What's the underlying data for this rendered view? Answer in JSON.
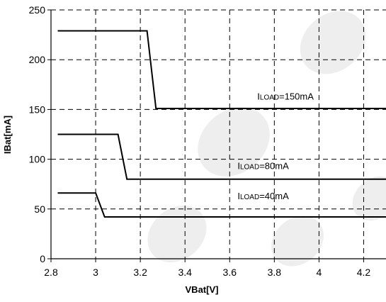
{
  "chart_data": {
    "type": "line",
    "title": "",
    "xlabel": "VBat[V]",
    "ylabel": "IBat[mA]",
    "xlim": [
      2.8,
      4.3
    ],
    "ylim": [
      0,
      250
    ],
    "grid": true,
    "grid_style": "dashed",
    "x_ticks": [
      "2.8",
      "3",
      "3.2",
      "3.4",
      "3.6",
      "3.8",
      "4",
      "4.2"
    ],
    "y_ticks": [
      "0",
      "50",
      "100",
      "150",
      "200",
      "250"
    ],
    "series": [
      {
        "label_prefix": "I",
        "label_sub": "LOAD",
        "label_suffix": "=150mA",
        "label_x": 3.85,
        "label_y": 160,
        "points": [
          [
            2.83,
            229
          ],
          [
            3.23,
            229
          ],
          [
            3.27,
            151
          ],
          [
            4.3,
            151
          ]
        ]
      },
      {
        "label_prefix": "I",
        "label_sub": "LOAD",
        "label_suffix": "=80mA",
        "label_x": 3.75,
        "label_y": 90,
        "points": [
          [
            2.83,
            125
          ],
          [
            3.1,
            125
          ],
          [
            3.14,
            80
          ],
          [
            4.3,
            80
          ]
        ]
      },
      {
        "label_prefix": "I",
        "label_sub": "LOAD",
        "label_suffix": "=40mA",
        "label_x": 3.75,
        "label_y": 60,
        "points": [
          [
            2.83,
            66
          ],
          [
            3.0,
            66
          ],
          [
            3.04,
            42
          ],
          [
            4.3,
            42
          ]
        ]
      }
    ],
    "watermark": "ams ... al co"
  },
  "colors": {
    "line": "#000000",
    "grid": "#000000",
    "watermark": "#eeeeee"
  }
}
